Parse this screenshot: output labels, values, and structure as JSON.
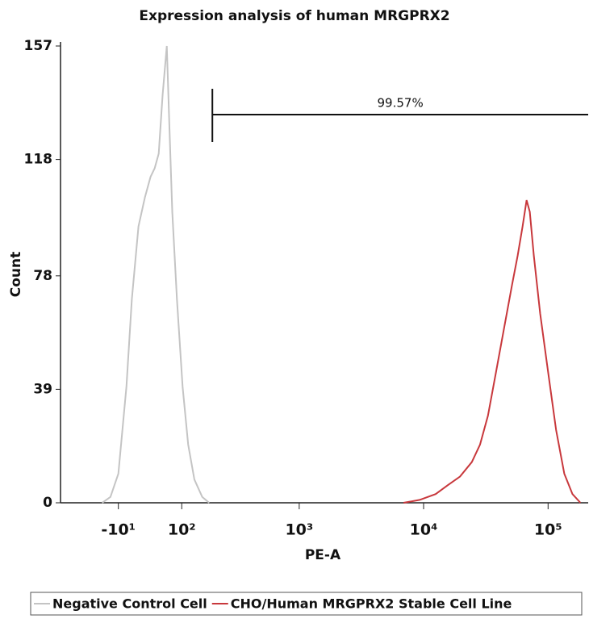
{
  "chart_data": {
    "type": "line",
    "title": "Expression analysis of human MRGPRX2",
    "x_label": "PE-A",
    "y_label": "Count",
    "xscale": "biexponential",
    "xlim": [
      -120,
      210000
    ],
    "xticks": [
      {
        "value": -10,
        "label": "-10¹"
      },
      {
        "value": 100,
        "label": "10²"
      },
      {
        "value": 1000,
        "label": "10³"
      },
      {
        "value": 10000,
        "label": "10⁴"
      },
      {
        "value": 100000,
        "label": "10⁵"
      }
    ],
    "ylim": [
      0,
      157
    ],
    "yticks": [
      0,
      39,
      78,
      118,
      157
    ],
    "gate": {
      "label": "99.57%",
      "xrange": [
        193,
        210000
      ]
    },
    "series": [
      {
        "name": "Negative Control Cell",
        "color": "#c4c4c4",
        "x": [
          -35,
          -22,
          -10,
          2,
          10,
          20,
          30,
          39,
          46,
          53,
          60,
          68,
          73,
          79,
          89,
          102,
          116,
          133,
          157,
          181
        ],
        "values": [
          0,
          2,
          10,
          40,
          70,
          95,
          105,
          112,
          115,
          120,
          140,
          157,
          130,
          100,
          70,
          40,
          20,
          8,
          2,
          0
        ]
      },
      {
        "name": "CHO/Human MRGPRX2 Stable Cell Line",
        "color": "#c8383c",
        "x": [
          6900,
          9300,
          12500,
          15600,
          19600,
          24400,
          28400,
          32900,
          38200,
          44300,
          51400,
          57000,
          62400,
          67200,
          71300,
          76800,
          86400,
          100000,
          116000,
          135000,
          157000,
          182000
        ],
        "values": [
          0,
          1,
          3,
          6,
          9,
          14,
          20,
          30,
          45,
          60,
          75,
          85,
          95,
          104,
          100,
          85,
          65,
          45,
          25,
          10,
          3,
          0
        ]
      }
    ]
  }
}
